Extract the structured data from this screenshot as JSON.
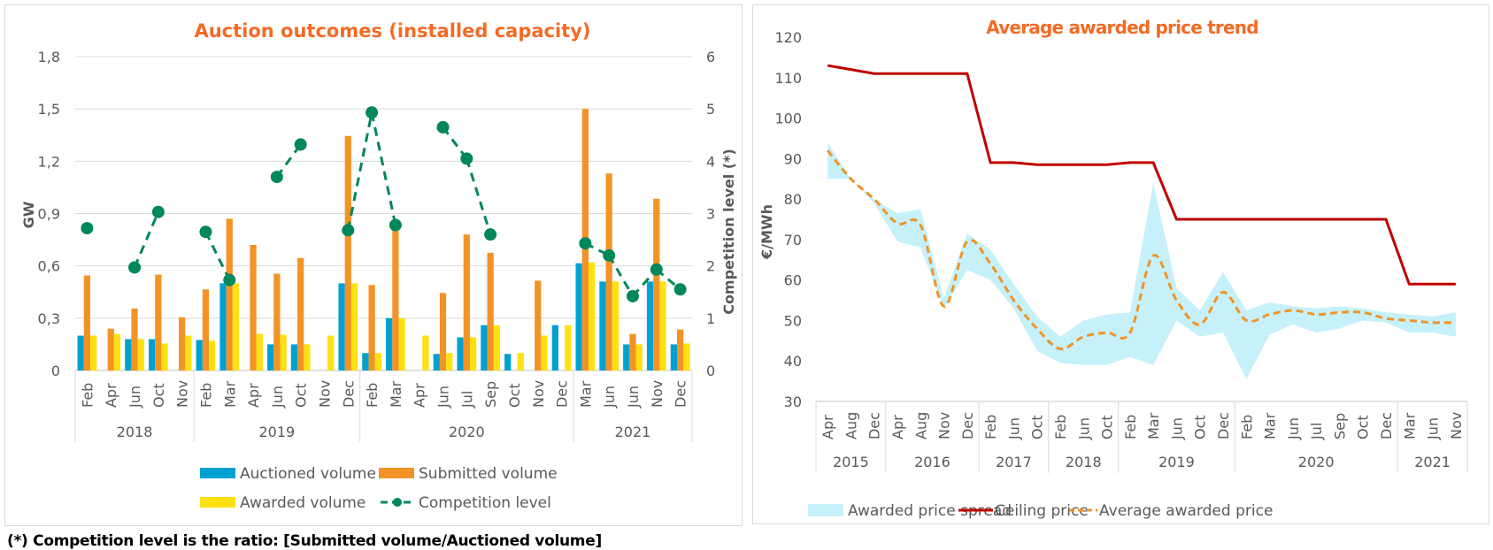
{
  "footnote": "(*) Competition level is the ratio: [Submitted volume/Auctioned volume]",
  "colors": {
    "auctioned": "#00A1D1",
    "submitted": "#F39325",
    "awarded": "#FFE011",
    "competition": "#00875A",
    "title": "#F26B25",
    "ceiling": "#C00000",
    "average": "#F39325",
    "spread": "#C6F1FB"
  },
  "chart_data": [
    {
      "type": "bar",
      "title": "Auction outcomes (installed capacity)",
      "ylabel": "GW",
      "y2label": "Competition level (*)",
      "ylim": [
        0,
        1.8
      ],
      "y2lim": [
        0,
        6
      ],
      "yticks": [
        "0",
        "0,3",
        "0,6",
        "0,9",
        "1,2",
        "1,5",
        "1,8"
      ],
      "y2ticks": [
        "0",
        "1",
        "2",
        "3",
        "4",
        "5",
        "6"
      ],
      "grid": true,
      "legend": "bottom",
      "groups": [
        {
          "year": "2018",
          "months": [
            "Feb",
            "Apr",
            "Jun",
            "Oct",
            "Nov"
          ]
        },
        {
          "year": "2019",
          "months": [
            "Feb",
            "Mar",
            "Apr",
            "Jun",
            "Oct",
            "Nov",
            "Dec"
          ]
        },
        {
          "year": "2020",
          "months": [
            "Feb",
            "Mar",
            "Apr",
            "Jun",
            "Jul",
            "Sep",
            "Oct",
            "Nov",
            "Dec"
          ]
        },
        {
          "year": "2021",
          "months": [
            "Mar",
            "Jun",
            "Jun",
            "Nov",
            "Dec"
          ]
        }
      ],
      "series": [
        {
          "name": "Auctioned volume",
          "type": "bar",
          "values": [
            0.2,
            null,
            0.18,
            0.18,
            null,
            0.175,
            0.5,
            null,
            0.15,
            0.15,
            null,
            0.5,
            0.1,
            0.3,
            null,
            0.095,
            0.19,
            0.26,
            0.095,
            null,
            0.26,
            0.615,
            0.51,
            0.15,
            0.51,
            0.15
          ]
        },
        {
          "name": "Submitted volume",
          "type": "bar",
          "values": [
            0.545,
            0.24,
            0.355,
            0.55,
            0.305,
            0.465,
            0.87,
            0.72,
            0.555,
            0.645,
            null,
            1.345,
            0.49,
            0.83,
            null,
            0.445,
            0.78,
            0.675,
            null,
            0.515,
            null,
            1.5,
            1.13,
            0.21,
            0.985,
            0.235
          ]
        },
        {
          "name": "Awarded volume",
          "type": "bar",
          "values": [
            0.2,
            0.21,
            0.18,
            0.155,
            0.2,
            0.17,
            0.5,
            0.21,
            0.205,
            0.15,
            0.2,
            0.5,
            0.1,
            0.3,
            0.2,
            0.1,
            0.19,
            0.26,
            0.1,
            0.2,
            0.26,
            0.62,
            0.51,
            0.15,
            0.51,
            0.155
          ]
        },
        {
          "name": "Competition level",
          "type": "line",
          "axis": "y2",
          "values": [
            2.72,
            null,
            1.97,
            3.03,
            null,
            2.65,
            1.73,
            null,
            3.7,
            4.32,
            null,
            2.68,
            4.93,
            2.78,
            null,
            4.65,
            4.05,
            2.6,
            null,
            null,
            null,
            2.43,
            2.2,
            1.42,
            1.93,
            1.55
          ]
        }
      ],
      "legend_entries": [
        "Auctioned volume",
        "Submitted volume",
        "Awarded volume",
        "Competition level"
      ]
    },
    {
      "type": "line",
      "title": "Average awarded price trend",
      "ylabel": "€/MWh",
      "ylim": [
        30,
        120
      ],
      "yticks": [
        "30",
        "40",
        "50",
        "60",
        "70",
        "80",
        "90",
        "100",
        "110",
        "120"
      ],
      "grid": false,
      "legend": "bottom",
      "groups": [
        {
          "year": "2015",
          "months": [
            "Apr",
            "Aug",
            "Dec"
          ]
        },
        {
          "year": "2016",
          "months": [
            "Apr",
            "Aug",
            "Nov",
            "Dec"
          ]
        },
        {
          "year": "2017",
          "months": [
            "Feb",
            "Jun",
            "Oct"
          ]
        },
        {
          "year": "2018",
          "months": [
            "Feb",
            "Jun",
            "Oct"
          ]
        },
        {
          "year": "2019",
          "months": [
            "Feb",
            "Mar",
            "Jun",
            "Oct",
            "Dec"
          ]
        },
        {
          "year": "2020",
          "months": [
            "Feb",
            "Mar",
            "Jun",
            "Jul",
            "Sep",
            "Oct",
            "Dec"
          ]
        },
        {
          "year": "2021",
          "months": [
            "Mar",
            "Jun",
            "Nov"
          ]
        }
      ],
      "series": [
        {
          "name": "Ceiling price",
          "type": "line",
          "values": [
            113,
            112,
            111,
            111,
            111,
            111,
            111,
            89,
            89,
            88.5,
            88.5,
            88.5,
            88.5,
            89,
            89,
            75,
            75,
            75,
            75,
            75,
            75,
            75,
            75,
            75,
            75,
            59,
            59,
            59
          ]
        },
        {
          "name": "Average awarded price",
          "type": "line",
          "style": "dashed",
          "values": [
            92,
            85,
            80,
            74,
            73.5,
            53.5,
            69.5,
            64,
            55,
            48,
            43,
            46,
            47,
            47,
            66,
            55,
            49,
            57,
            50,
            51.5,
            52.5,
            51.5,
            52,
            52,
            50.5,
            50,
            49.5,
            49.5
          ]
        },
        {
          "name": "Awarded price spread",
          "type": "area",
          "upper": [
            94,
            85,
            80,
            76.5,
            77.5,
            55.5,
            71.5,
            67.5,
            59,
            51,
            46,
            50,
            51.5,
            52,
            84,
            58,
            52.5,
            62,
            52.5,
            54.5,
            53.5,
            53,
            53.5,
            53,
            52,
            51.5,
            51,
            52
          ],
          "lower": [
            85,
            85,
            79,
            69.5,
            68,
            53,
            62.5,
            60,
            53,
            42.5,
            39.5,
            39,
            39,
            41,
            39,
            50,
            46,
            47,
            35.5,
            46.5,
            49,
            47,
            48,
            50,
            49.5,
            47,
            47,
            46
          ]
        }
      ],
      "legend_entries": [
        "Awarded price spread",
        "Ceiling price",
        "Average awarded price"
      ]
    }
  ]
}
